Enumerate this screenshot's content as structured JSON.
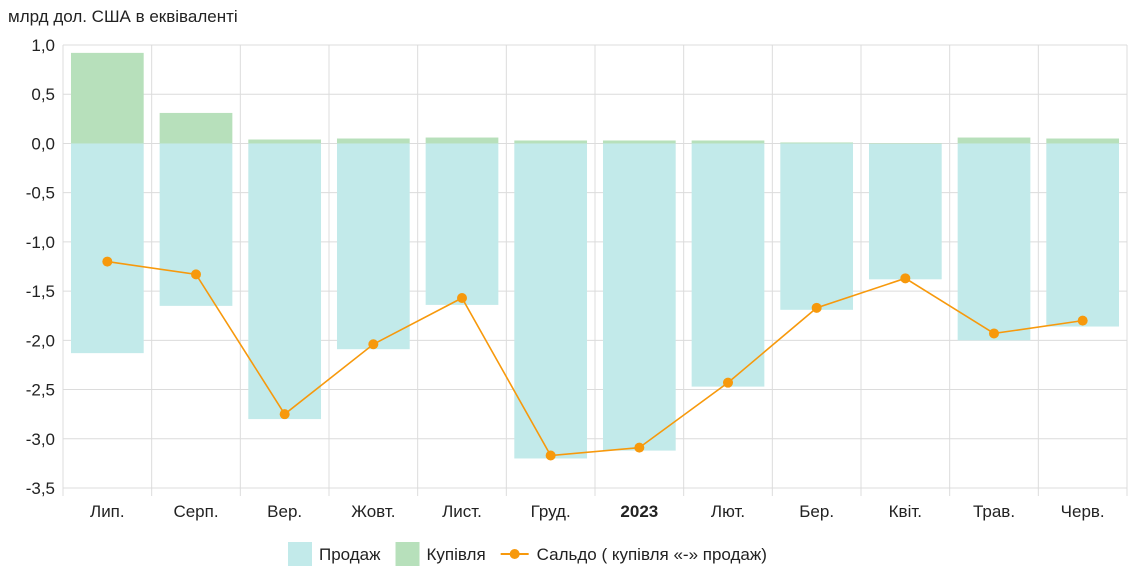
{
  "chart_data": {
    "type": "bar",
    "unit_label": "млрд дол. США в еквіваленті",
    "categories": [
      "Лип.",
      "Серп.",
      "Вер.",
      "Жовт.",
      "Лист.",
      "Груд.",
      "2023",
      "Лют.",
      "Бер.",
      "Квіт.",
      "Трав.",
      "Черв."
    ],
    "bold_categories": [
      "2023"
    ],
    "y_ticks": [
      "1,0",
      "0,5",
      "0,0",
      "-0,5",
      "-1,0",
      "-1,5",
      "-2,0",
      "-2,5",
      "-3,0",
      "-3,5"
    ],
    "ylim": [
      -3.5,
      1.0
    ],
    "grid": true,
    "legend_position": "bottom",
    "series": [
      {
        "name": "Продаж",
        "kind": "bar",
        "color": "#c2eaea",
        "values": [
          -2.13,
          -1.65,
          -2.8,
          -2.09,
          -1.64,
          -3.2,
          -3.12,
          -2.47,
          -1.69,
          -1.38,
          -2.0,
          -1.86
        ]
      },
      {
        "name": "Купівля",
        "kind": "bar",
        "color": "#b7e0bb",
        "values": [
          0.92,
          0.31,
          0.04,
          0.05,
          0.06,
          0.03,
          0.03,
          0.03,
          0.01,
          0.0,
          0.06,
          0.05
        ]
      },
      {
        "name": "Сальдо ( купівля «-» продаж)",
        "kind": "line",
        "color": "#f7990c",
        "values": [
          -1.2,
          -1.33,
          -2.75,
          -2.04,
          -1.57,
          -3.17,
          -3.09,
          -2.43,
          -1.67,
          -1.37,
          -1.93,
          -1.8
        ]
      }
    ]
  }
}
